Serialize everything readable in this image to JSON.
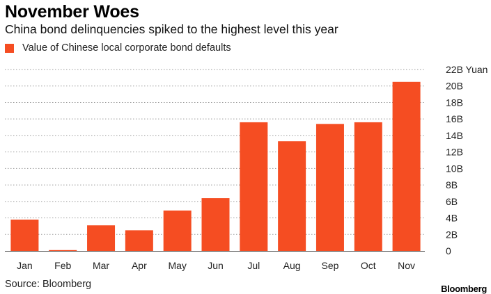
{
  "header": {
    "title": "November Woes",
    "subtitle": "China bond delinquencies spiked to the highest level this year"
  },
  "legend": {
    "label": "Value of Chinese local corporate bond defaults",
    "color": "#f54d22"
  },
  "footer": {
    "source": "Source: Bloomberg",
    "brand": "Bloomberg"
  },
  "chart_data": {
    "type": "bar",
    "categories": [
      "Jan",
      "Feb",
      "Mar",
      "Apr",
      "May",
      "Jun",
      "Jul",
      "Aug",
      "Sep",
      "Oct",
      "Nov"
    ],
    "series": [
      {
        "name": "Value of Chinese local corporate bond defaults",
        "values": [
          3.8,
          0.1,
          3.1,
          2.5,
          4.9,
          6.4,
          15.6,
          13.3,
          15.4,
          15.6,
          20.5
        ],
        "unit": "B Yuan"
      }
    ],
    "ylim": [
      0,
      22
    ],
    "y_ticks": [
      "0",
      "2B",
      "4B",
      "6B",
      "8B",
      "10B",
      "12B",
      "14B",
      "16B",
      "18B",
      "20B",
      "22B Yuan"
    ],
    "y_tick_values": [
      0,
      2,
      4,
      6,
      8,
      10,
      12,
      14,
      16,
      18,
      20,
      22
    ],
    "y_axis_side": "right",
    "grid": "dotted-horizontal",
    "bar_color": "#f54d22"
  }
}
